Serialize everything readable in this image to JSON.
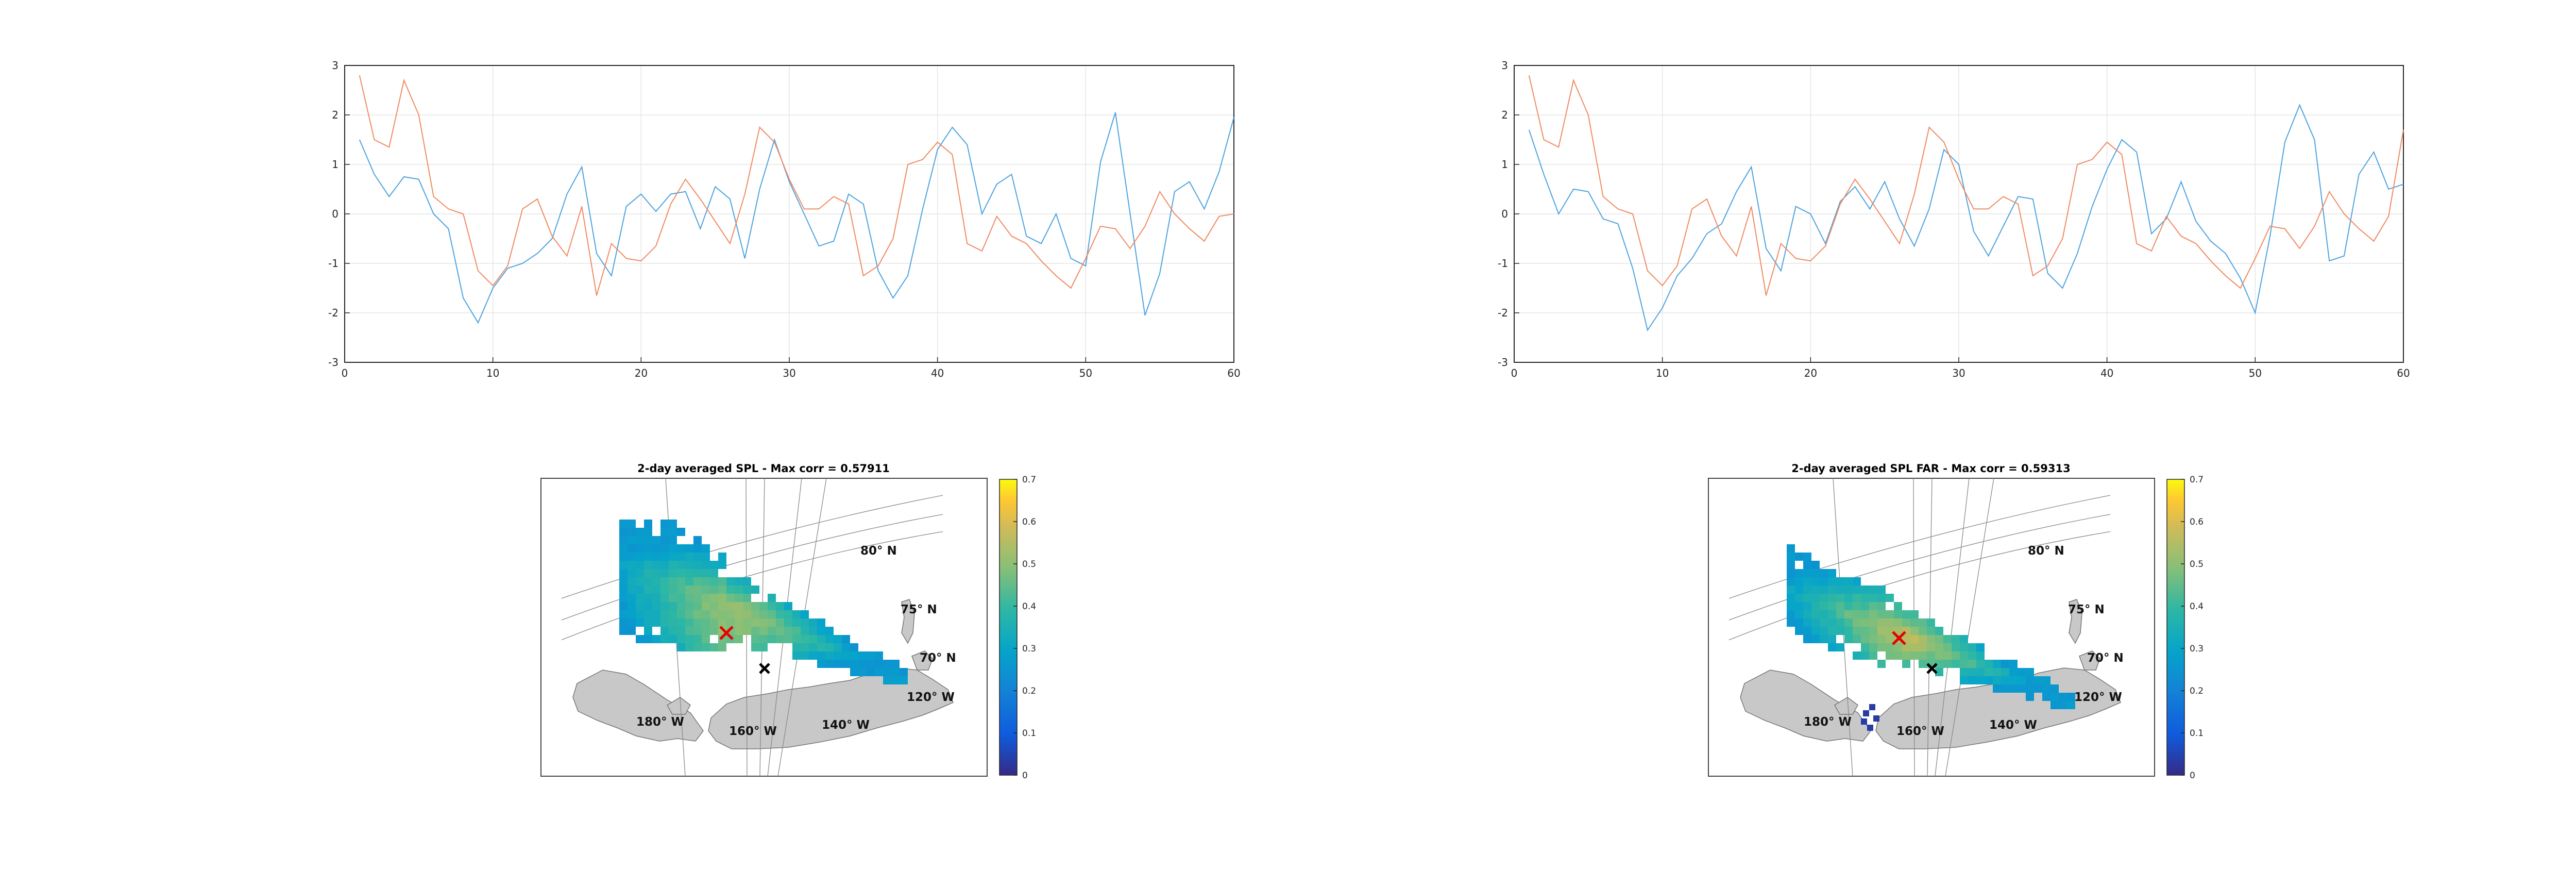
{
  "colors": {
    "series_blue": "#4DA3E0",
    "series_orange": "#F08A62",
    "grid": "#e6e6e6",
    "axis": "#262626",
    "land": "#c8c8c8",
    "marker_max": "#e60000",
    "marker_site": "#000000"
  },
  "colorbar": {
    "colormap": "parula",
    "ticks": [
      "0",
      "0.1",
      "0.2",
      "0.3",
      "0.4",
      "0.5",
      "0.6",
      "0.7"
    ],
    "range": [
      0,
      0.7
    ]
  },
  "chart_data": [
    {
      "type": "line",
      "id": "timeseries-left",
      "xlim": [
        0,
        60
      ],
      "ylim": [
        -3,
        3
      ],
      "xticks": [
        "0",
        "10",
        "20",
        "30",
        "40",
        "50",
        "60"
      ],
      "yticks": [
        "-3",
        "-2",
        "-1",
        "0",
        "1",
        "2",
        "3"
      ],
      "grid": true,
      "x": [
        1,
        2,
        3,
        4,
        5,
        6,
        7,
        8,
        9,
        10,
        11,
        12,
        13,
        14,
        15,
        16,
        17,
        18,
        19,
        20,
        21,
        22,
        23,
        24,
        25,
        26,
        27,
        28,
        29,
        30,
        31,
        32,
        33,
        34,
        35,
        36,
        37,
        38,
        39,
        40,
        41,
        42,
        43,
        44,
        45,
        46,
        47,
        48,
        49,
        50,
        51,
        52,
        53,
        54,
        55,
        56,
        57,
        58,
        59,
        60
      ],
      "series": [
        {
          "color": "series_blue",
          "values": [
            1.5,
            0.8,
            0.35,
            0.75,
            0.7,
            0.0,
            -0.3,
            -1.7,
            -2.2,
            -1.5,
            -1.1,
            -1.0,
            -0.8,
            -0.5,
            0.4,
            0.95,
            -0.8,
            -1.25,
            0.15,
            0.4,
            0.05,
            0.4,
            0.45,
            -0.3,
            0.55,
            0.3,
            -0.9,
            0.5,
            1.5,
            0.65,
            0.0,
            -0.65,
            -0.55,
            0.4,
            0.2,
            -1.15,
            -1.7,
            -1.25,
            0.1,
            1.3,
            1.75,
            1.4,
            0.0,
            0.6,
            0.8,
            -0.45,
            -0.6,
            0.0,
            -0.9,
            -1.05,
            1.05,
            2.05,
            0.0,
            -2.05,
            -1.2,
            0.45,
            0.65,
            0.1,
            0.85,
            1.95
          ]
        },
        {
          "color": "series_orange",
          "values": [
            2.8,
            1.5,
            1.35,
            2.7,
            2.0,
            0.35,
            0.1,
            0.0,
            -1.15,
            -1.45,
            -1.05,
            0.1,
            0.3,
            -0.45,
            -0.85,
            0.15,
            -1.65,
            -0.6,
            -0.9,
            -0.95,
            -0.65,
            0.2,
            0.7,
            0.3,
            -0.15,
            -0.6,
            0.4,
            1.75,
            1.45,
            0.7,
            0.1,
            0.1,
            0.35,
            0.2,
            -1.25,
            -1.05,
            -0.5,
            1.0,
            1.1,
            1.45,
            1.2,
            -0.6,
            -0.75,
            -0.05,
            -0.45,
            -0.6,
            -0.95,
            -1.25,
            -1.5,
            -0.9,
            -0.25,
            -0.3,
            -0.7,
            -0.25,
            0.45,
            0.0,
            -0.3,
            -0.55,
            -0.05,
            0.0
          ]
        }
      ]
    },
    {
      "type": "line",
      "id": "timeseries-right",
      "xlim": [
        0,
        60
      ],
      "ylim": [
        -3,
        3
      ],
      "xticks": [
        "0",
        "10",
        "20",
        "30",
        "40",
        "50",
        "60"
      ],
      "yticks": [
        "-3",
        "-2",
        "-1",
        "0",
        "1",
        "2",
        "3"
      ],
      "grid": true,
      "x": [
        1,
        2,
        3,
        4,
        5,
        6,
        7,
        8,
        9,
        10,
        11,
        12,
        13,
        14,
        15,
        16,
        17,
        18,
        19,
        20,
        21,
        22,
        23,
        24,
        25,
        26,
        27,
        28,
        29,
        30,
        31,
        32,
        33,
        34,
        35,
        36,
        37,
        38,
        39,
        40,
        41,
        42,
        43,
        44,
        45,
        46,
        47,
        48,
        49,
        50,
        51,
        52,
        53,
        54,
        55,
        56,
        57,
        58,
        59,
        60
      ],
      "series": [
        {
          "color": "series_blue",
          "values": [
            1.7,
            0.8,
            0.0,
            0.5,
            0.45,
            -0.1,
            -0.2,
            -1.1,
            -2.35,
            -1.9,
            -1.25,
            -0.9,
            -0.4,
            -0.2,
            0.45,
            0.95,
            -0.7,
            -1.15,
            0.15,
            0.0,
            -0.6,
            0.25,
            0.55,
            0.1,
            0.65,
            -0.1,
            -0.65,
            0.1,
            1.3,
            1.0,
            -0.35,
            -0.85,
            -0.25,
            0.35,
            0.3,
            -1.2,
            -1.5,
            -0.8,
            0.15,
            0.9,
            1.5,
            1.25,
            -0.4,
            -0.1,
            0.65,
            -0.15,
            -0.55,
            -0.8,
            -1.3,
            -2.0,
            -0.45,
            1.45,
            2.2,
            1.5,
            -0.95,
            -0.85,
            0.8,
            1.25,
            0.5,
            0.6
          ]
        },
        {
          "color": "series_orange",
          "values": [
            2.8,
            1.5,
            1.35,
            2.7,
            2.0,
            0.35,
            0.1,
            0.0,
            -1.15,
            -1.45,
            -1.05,
            0.1,
            0.3,
            -0.45,
            -0.85,
            0.15,
            -1.65,
            -0.6,
            -0.9,
            -0.95,
            -0.65,
            0.2,
            0.7,
            0.3,
            -0.15,
            -0.6,
            0.4,
            1.75,
            1.45,
            0.7,
            0.1,
            0.1,
            0.35,
            0.2,
            -1.25,
            -1.05,
            -0.5,
            1.0,
            1.1,
            1.45,
            1.2,
            -0.6,
            -0.75,
            -0.05,
            -0.45,
            -0.6,
            -0.95,
            -1.25,
            -1.5,
            -0.9,
            -0.25,
            -0.3,
            -0.7,
            -0.25,
            0.45,
            0.0,
            -0.3,
            -0.55,
            -0.05,
            1.7
          ]
        }
      ]
    }
  ],
  "maps": [
    {
      "title": "2-day averaged SPL - Max corr = 0.57911",
      "labels": {
        "lat80": "80° N",
        "lat75": "75° N",
        "lat70": "70° N",
        "lon120": "120° W",
        "lon140": "140° W",
        "lon160": "160° W",
        "lon180": "180° W"
      }
    },
    {
      "title": "2-day averaged SPL FAR - Max corr = 0.59313",
      "labels": {
        "lat80": "80° N",
        "lat75": "75° N",
        "lat70": "70° N",
        "lon120": "120° W",
        "lon140": "140° W",
        "lon160": "160° W",
        "lon180": "180° W"
      }
    }
  ]
}
